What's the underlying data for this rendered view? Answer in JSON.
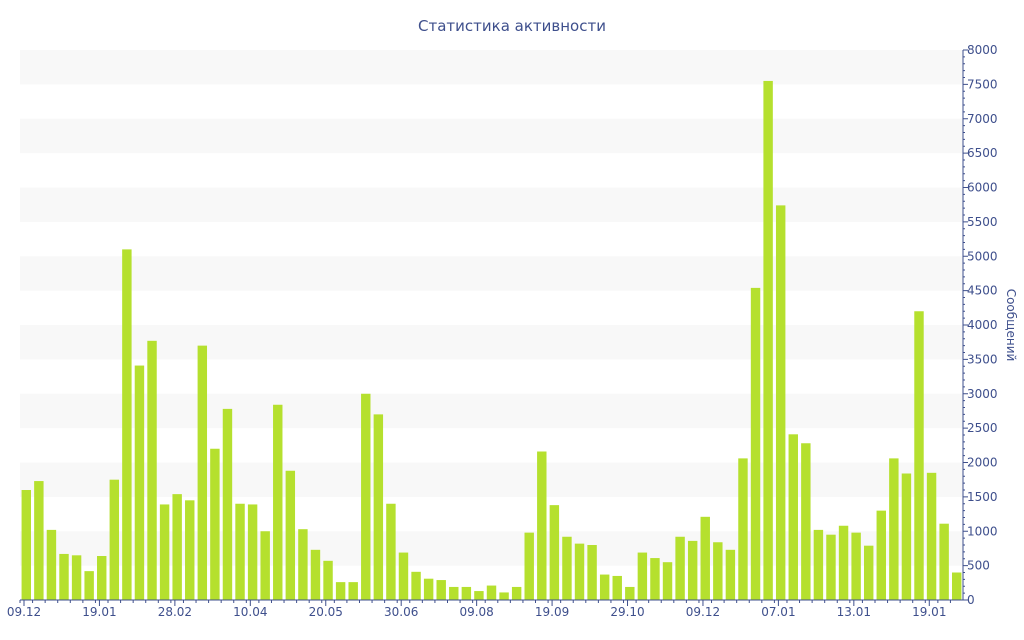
{
  "chart_data": {
    "type": "bar",
    "title": "Статистика активности",
    "xlabel": "",
    "ylabel": "Сообщений",
    "ylim": [
      0,
      8000
    ],
    "yticks": [
      0,
      500,
      1000,
      1500,
      2000,
      2500,
      3000,
      3500,
      4000,
      4500,
      5000,
      5500,
      6000,
      6500,
      7000,
      7500,
      8000
    ],
    "xtick_labels": [
      "09.12",
      "19.01",
      "28.02",
      "10.04",
      "20.05",
      "30.06",
      "09.08",
      "19.09",
      "29.10",
      "09.12",
      "07.01",
      "13.01",
      "19.01"
    ],
    "xtick_bar_index": [
      0,
      6,
      12,
      18,
      24,
      30,
      36,
      42,
      48,
      54,
      60,
      66,
      72
    ],
    "grid": true,
    "y_axis_position": "right",
    "colors": {
      "bar": "#b5e02e",
      "band": "#f8f8f8",
      "text": "#3e4f8c",
      "axis": "#3e4f8c"
    },
    "values": [
      1600,
      1730,
      1020,
      670,
      650,
      420,
      640,
      1750,
      5100,
      3410,
      3770,
      1390,
      1540,
      1450,
      3700,
      2200,
      2780,
      1400,
      1390,
      1000,
      2840,
      1880,
      1030,
      730,
      570,
      260,
      260,
      3000,
      2700,
      1400,
      690,
      410,
      310,
      290,
      190,
      190,
      130,
      210,
      110,
      190,
      980,
      2160,
      1380,
      920,
      820,
      800,
      370,
      350,
      190,
      690,
      610,
      550,
      920,
      860,
      1210,
      840,
      730,
      2060,
      4540,
      7550,
      5740,
      2410,
      2280,
      1020,
      950,
      1080,
      980,
      790,
      1300,
      2060,
      1840,
      4200,
      1850,
      1110,
      400
    ]
  }
}
